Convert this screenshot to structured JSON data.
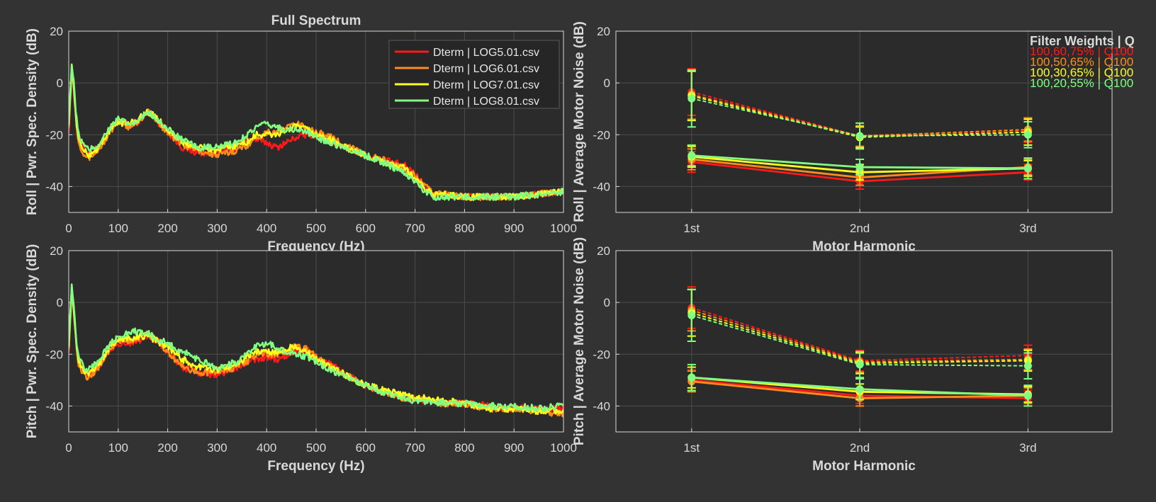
{
  "figure": {
    "background": "#333333",
    "axes_background": "#2b2b2b",
    "grid_color": "#4d4d4d",
    "axis_color": "#d9d9d9"
  },
  "colors": {
    "red": "#ff1a1a",
    "orange": "#ff8c1a",
    "yellow": "#ffff1a",
    "green": "#80ff80"
  },
  "chart_data": [
    {
      "id": "spectrum-roll",
      "type": "line",
      "title": "Full Spectrum",
      "xlabel": "Frequency (Hz)",
      "ylabel": "Roll  |  Pwr. Spec. Density (dB)",
      "xlim": [
        0,
        1000
      ],
      "ylim": [
        -50,
        20
      ],
      "xticks": [
        0,
        100,
        200,
        300,
        400,
        500,
        600,
        700,
        800,
        900,
        1000
      ],
      "yticks": [
        -40,
        -20,
        0,
        20
      ],
      "grid": true,
      "legend": {
        "placement": "top-right",
        "entries": [
          "Dterm | LOG5.01.csv",
          "Dterm | LOG6.01.csv",
          "Dterm | LOG7.01.csv",
          "Dterm | LOG8.01.csv"
        ]
      },
      "series": [
        {
          "name": "Dterm | LOG5.01.csv",
          "color": "red",
          "x": [
            0,
            3,
            6,
            10,
            15,
            20,
            30,
            40,
            60,
            80,
            100,
            120,
            140,
            160,
            180,
            200,
            230,
            260,
            300,
            340,
            360,
            380,
            400,
            420,
            440,
            460,
            480,
            500,
            530,
            560,
            600,
            640,
            680,
            700,
            720,
            740,
            760,
            800,
            850,
            900,
            950,
            1000
          ],
          "y": [
            -18,
            -8,
            5,
            -2,
            -14,
            -21,
            -25,
            -27,
            -25,
            -20,
            -15,
            -16,
            -15,
            -11,
            -15,
            -19,
            -25,
            -27,
            -27,
            -25,
            -22,
            -22,
            -23,
            -25,
            -23,
            -21,
            -20,
            -20,
            -22,
            -25,
            -28,
            -30,
            -32,
            -35,
            -40,
            -43,
            -43,
            -44,
            -44,
            -44,
            -43,
            -42
          ]
        },
        {
          "name": "Dterm | LOG6.01.csv",
          "color": "orange",
          "x": [
            0,
            3,
            6,
            10,
            15,
            20,
            30,
            40,
            60,
            80,
            100,
            120,
            140,
            160,
            180,
            200,
            230,
            260,
            300,
            340,
            360,
            380,
            400,
            420,
            440,
            460,
            480,
            500,
            530,
            560,
            600,
            640,
            680,
            700,
            720,
            740,
            760,
            800,
            850,
            900,
            950,
            1000
          ],
          "y": [
            -16,
            -6,
            6,
            -1,
            -15,
            -23,
            -27,
            -29,
            -26,
            -20,
            -15,
            -17,
            -15,
            -11,
            -15,
            -19,
            -24,
            -26,
            -28,
            -26,
            -24,
            -21,
            -19,
            -19,
            -17,
            -16,
            -17,
            -19,
            -21,
            -24,
            -28,
            -30,
            -33,
            -36,
            -40,
            -43,
            -43,
            -44,
            -44,
            -44,
            -43,
            -42
          ]
        },
        {
          "name": "Dterm | LOG7.01.csv",
          "color": "yellow",
          "x": [
            0,
            3,
            6,
            10,
            15,
            20,
            30,
            40,
            60,
            80,
            100,
            120,
            140,
            160,
            180,
            200,
            230,
            260,
            300,
            340,
            360,
            380,
            400,
            420,
            440,
            460,
            480,
            500,
            530,
            560,
            600,
            640,
            680,
            700,
            720,
            740,
            760,
            800,
            850,
            900,
            950,
            1000
          ],
          "y": [
            -15,
            -5,
            6,
            -1,
            -14,
            -22,
            -26,
            -28,
            -25,
            -19,
            -15,
            -16,
            -14,
            -11,
            -14,
            -18,
            -23,
            -25,
            -26,
            -24,
            -23,
            -20,
            -20,
            -20,
            -18,
            -17,
            -18,
            -20,
            -22,
            -25,
            -28,
            -31,
            -33,
            -37,
            -41,
            -43,
            -43,
            -44,
            -44,
            -44,
            -43,
            -42
          ]
        },
        {
          "name": "Dterm | LOG8.01.csv",
          "color": "green",
          "x": [
            0,
            3,
            6,
            10,
            15,
            20,
            30,
            40,
            60,
            80,
            100,
            120,
            140,
            160,
            180,
            200,
            230,
            260,
            300,
            340,
            360,
            380,
            400,
            420,
            440,
            460,
            480,
            500,
            530,
            560,
            600,
            640,
            680,
            700,
            720,
            740,
            760,
            800,
            850,
            900,
            950,
            1000
          ],
          "y": [
            -14,
            -4,
            7,
            0,
            -13,
            -20,
            -24,
            -26,
            -24,
            -18,
            -14,
            -16,
            -15,
            -11,
            -14,
            -18,
            -22,
            -25,
            -25,
            -23,
            -20,
            -17,
            -16,
            -17,
            -18,
            -18,
            -19,
            -21,
            -23,
            -25,
            -28,
            -31,
            -35,
            -38,
            -42,
            -44,
            -44,
            -44,
            -44,
            -44,
            -43,
            -42
          ]
        }
      ]
    },
    {
      "id": "harmonic-roll",
      "type": "line",
      "title": "",
      "xlabel": "Motor Harmonic",
      "ylabel": "Roll | Average Motor Noise (dB)",
      "categories": [
        "1st",
        "2nd",
        "3rd"
      ],
      "xlim": [
        0.55,
        3.5
      ],
      "ylim": [
        -50,
        20
      ],
      "yticks": [
        -40,
        -20,
        0,
        20
      ],
      "grid": true,
      "legend": {
        "placement": "top-right",
        "title": "Filter Weights | Q",
        "entries": [
          "100,60,75% | Q100",
          "100,50,65% | Q100",
          "100,30,65% | Q100",
          "100,20,55% | Q100"
        ]
      },
      "series": [
        {
          "color": "red",
          "style": "dashed",
          "values": [
            -3.5,
            -20.5,
            -18.5
          ],
          "errors": [
            9,
            4,
            4.5
          ]
        },
        {
          "color": "orange",
          "style": "dashed",
          "values": [
            -4.5,
            -20.5,
            -18
          ],
          "errors": [
            9.5,
            4,
            4.5
          ]
        },
        {
          "color": "yellow",
          "style": "dashed",
          "values": [
            -5,
            -21,
            -19
          ],
          "errors": [
            9.5,
            4,
            5
          ]
        },
        {
          "color": "green",
          "style": "dashed",
          "values": [
            -6,
            -20.5,
            -20
          ],
          "errors": [
            11,
            5,
            5
          ]
        },
        {
          "color": "red",
          "style": "solid",
          "values": [
            -30.5,
            -38,
            -34.5
          ],
          "errors": [
            4,
            3,
            3
          ]
        },
        {
          "color": "orange",
          "style": "solid",
          "values": [
            -29.5,
            -36.5,
            -32.5
          ],
          "errors": [
            4,
            3,
            3
          ]
        },
        {
          "color": "yellow",
          "style": "solid",
          "values": [
            -28.5,
            -34.5,
            -33
          ],
          "errors": [
            4,
            3,
            3
          ]
        },
        {
          "color": "green",
          "style": "solid",
          "values": [
            -28,
            -32.5,
            -33
          ],
          "errors": [
            4,
            3,
            4
          ]
        }
      ]
    },
    {
      "id": "spectrum-pitch",
      "type": "line",
      "title": "",
      "xlabel": "Frequency (Hz)",
      "ylabel": "Pitch  |  Pwr. Spec. Density (dB)",
      "xlim": [
        0,
        1000
      ],
      "ylim": [
        -50,
        20
      ],
      "xticks": [
        0,
        100,
        200,
        300,
        400,
        500,
        600,
        700,
        800,
        900,
        1000
      ],
      "yticks": [
        -40,
        -20,
        0,
        20
      ],
      "grid": true,
      "series": [
        {
          "color": "red",
          "x": [
            0,
            3,
            6,
            10,
            15,
            20,
            30,
            40,
            60,
            80,
            100,
            120,
            140,
            160,
            180,
            200,
            230,
            260,
            300,
            340,
            360,
            380,
            400,
            420,
            440,
            460,
            480,
            500,
            530,
            560,
            600,
            640,
            680,
            700,
            720,
            760,
            800,
            850,
            900,
            950,
            1000
          ],
          "y": [
            -18,
            -8,
            4,
            -3,
            -15,
            -23,
            -27,
            -28,
            -25,
            -19,
            -16,
            -16,
            -15,
            -13,
            -15,
            -19,
            -25,
            -27,
            -28,
            -25,
            -23,
            -22,
            -21,
            -22,
            -21,
            -19,
            -18,
            -21,
            -24,
            -28,
            -32,
            -35,
            -37,
            -37,
            -38,
            -39,
            -39,
            -40,
            -41,
            -41,
            -41
          ]
        },
        {
          "color": "orange",
          "x": [
            0,
            3,
            6,
            10,
            15,
            20,
            30,
            40,
            60,
            80,
            100,
            120,
            140,
            160,
            180,
            200,
            230,
            260,
            300,
            340,
            360,
            380,
            400,
            420,
            440,
            460,
            480,
            500,
            530,
            560,
            600,
            640,
            680,
            700,
            720,
            760,
            800,
            850,
            900,
            950,
            1000
          ],
          "y": [
            -17,
            -7,
            5,
            -2,
            -16,
            -24,
            -28,
            -29,
            -25,
            -19,
            -15,
            -15,
            -14,
            -12,
            -15,
            -19,
            -25,
            -27,
            -27,
            -25,
            -23,
            -20,
            -20,
            -20,
            -19,
            -17,
            -18,
            -21,
            -25,
            -28,
            -32,
            -35,
            -37,
            -37,
            -38,
            -39,
            -39,
            -41,
            -41,
            -42,
            -43
          ]
        },
        {
          "color": "yellow",
          "x": [
            0,
            3,
            6,
            10,
            15,
            20,
            30,
            40,
            60,
            80,
            100,
            120,
            140,
            160,
            180,
            200,
            230,
            260,
            300,
            340,
            360,
            380,
            400,
            420,
            440,
            460,
            480,
            500,
            530,
            560,
            600,
            640,
            680,
            700,
            720,
            760,
            800,
            850,
            900,
            950,
            1000
          ],
          "y": [
            -16,
            -6,
            5,
            -2,
            -15,
            -23,
            -26,
            -27,
            -24,
            -18,
            -14,
            -14,
            -13,
            -13,
            -15,
            -17,
            -22,
            -25,
            -26,
            -24,
            -21,
            -19,
            -19,
            -19,
            -18,
            -17,
            -19,
            -22,
            -25,
            -28,
            -32,
            -34,
            -36,
            -37,
            -37,
            -38,
            -39,
            -41,
            -41,
            -42,
            -42
          ]
        },
        {
          "color": "green",
          "x": [
            0,
            3,
            6,
            10,
            15,
            20,
            30,
            40,
            60,
            80,
            100,
            120,
            140,
            160,
            180,
            200,
            230,
            260,
            300,
            340,
            360,
            380,
            400,
            420,
            440,
            460,
            480,
            500,
            530,
            560,
            600,
            640,
            680,
            700,
            720,
            760,
            800,
            850,
            900,
            950,
            1000
          ],
          "y": [
            -15,
            -5,
            6,
            -1,
            -14,
            -21,
            -25,
            -26,
            -23,
            -17,
            -13,
            -12,
            -11,
            -12,
            -14,
            -16,
            -19,
            -22,
            -25,
            -23,
            -20,
            -17,
            -16,
            -17,
            -19,
            -20,
            -21,
            -23,
            -26,
            -29,
            -32,
            -35,
            -37,
            -38,
            -38,
            -39,
            -39,
            -40,
            -40,
            -41,
            -40
          ]
        }
      ]
    },
    {
      "id": "harmonic-pitch",
      "type": "line",
      "title": "",
      "xlabel": "Motor Harmonic",
      "ylabel": "Pitch | Average Motor Noise (dB)",
      "categories": [
        "1st",
        "2nd",
        "3rd"
      ],
      "xlim": [
        0.55,
        3.5
      ],
      "ylim": [
        -50,
        20
      ],
      "yticks": [
        -40,
        -20,
        0,
        20
      ],
      "grid": true,
      "series": [
        {
          "color": "red",
          "style": "dashed",
          "values": [
            -2,
            -22.5,
            -20.5
          ],
          "errors": [
            8,
            4,
            4
          ]
        },
        {
          "color": "orange",
          "style": "dashed",
          "values": [
            -3,
            -23,
            -22
          ],
          "errors": [
            8,
            4,
            4
          ]
        },
        {
          "color": "yellow",
          "style": "dashed",
          "values": [
            -4,
            -23.5,
            -22.5
          ],
          "errors": [
            9,
            4,
            4
          ]
        },
        {
          "color": "green",
          "style": "dashed",
          "values": [
            -5,
            -24,
            -24.5
          ],
          "errors": [
            10,
            5,
            5
          ]
        },
        {
          "color": "red",
          "style": "solid",
          "values": [
            -30,
            -36,
            -37
          ],
          "errors": [
            4,
            3,
            3
          ]
        },
        {
          "color": "orange",
          "style": "solid",
          "values": [
            -30.5,
            -37,
            -36
          ],
          "errors": [
            4,
            3,
            3
          ]
        },
        {
          "color": "yellow",
          "style": "solid",
          "values": [
            -29,
            -34.5,
            -35.5
          ],
          "errors": [
            4,
            3,
            3
          ]
        },
        {
          "color": "green",
          "style": "solid",
          "values": [
            -29,
            -33.5,
            -36
          ],
          "errors": [
            5,
            4,
            4
          ]
        }
      ]
    }
  ]
}
